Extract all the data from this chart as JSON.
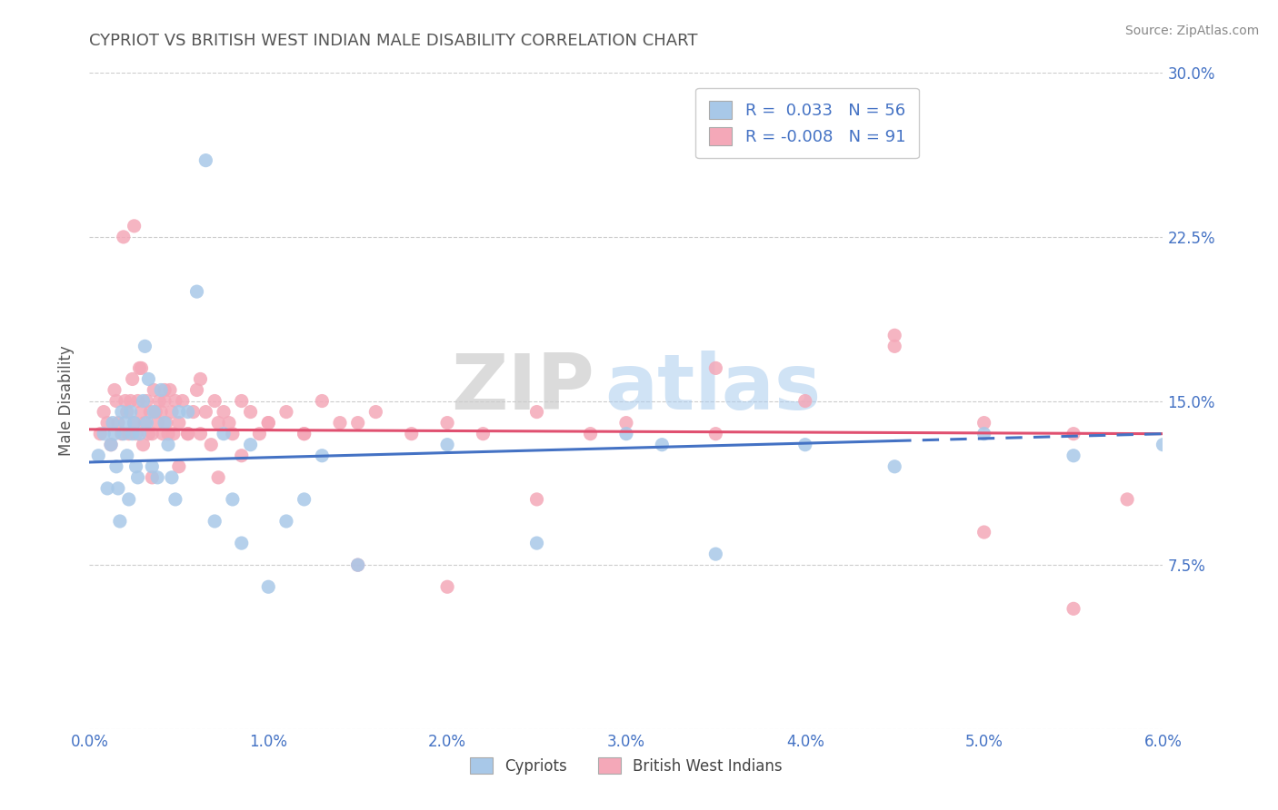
{
  "title": "CYPRIOT VS BRITISH WEST INDIAN MALE DISABILITY CORRELATION CHART",
  "source": "Source: ZipAtlas.com",
  "ylabel": "Male Disability",
  "xlim": [
    0.0,
    6.0
  ],
  "ylim": [
    0.0,
    30.0
  ],
  "xticks": [
    0.0,
    1.0,
    2.0,
    3.0,
    4.0,
    5.0,
    6.0
  ],
  "yticks": [
    0.0,
    7.5,
    15.0,
    22.5,
    30.0
  ],
  "xtick_labels": [
    "0.0%",
    "1.0%",
    "2.0%",
    "3.0%",
    "4.0%",
    "5.0%",
    "6.0%"
  ],
  "ytick_labels_right": [
    "",
    "7.5%",
    "15.0%",
    "22.5%",
    "30.0%"
  ],
  "cypriot_R": 0.033,
  "cypriot_N": 56,
  "bwi_R": -0.008,
  "bwi_N": 91,
  "cypriot_color": "#a8c8e8",
  "bwi_color": "#f4a8b8",
  "cypriot_line_color": "#4472c4",
  "bwi_line_color": "#e05070",
  "text_color": "#4472c4",
  "title_color": "#555555",
  "grid_color": "#cccccc",
  "background_color": "#ffffff",
  "watermark_zip": "ZIP",
  "watermark_atlas": "atlas",
  "cypriot_x": [
    0.05,
    0.08,
    0.1,
    0.12,
    0.13,
    0.14,
    0.15,
    0.16,
    0.17,
    0.18,
    0.19,
    0.2,
    0.21,
    0.22,
    0.23,
    0.24,
    0.25,
    0.26,
    0.27,
    0.28,
    0.3,
    0.31,
    0.32,
    0.33,
    0.35,
    0.36,
    0.38,
    0.4,
    0.42,
    0.44,
    0.46,
    0.48,
    0.5,
    0.55,
    0.6,
    0.65,
    0.7,
    0.75,
    0.8,
    0.85,
    0.9,
    1.0,
    1.1,
    1.2,
    1.3,
    1.5,
    2.0,
    2.5,
    3.0,
    3.5,
    4.0,
    4.5,
    5.0,
    5.5,
    6.0,
    3.2
  ],
  "cypriot_y": [
    12.5,
    13.5,
    11.0,
    13.0,
    14.0,
    13.5,
    12.0,
    11.0,
    9.5,
    14.5,
    13.5,
    14.0,
    12.5,
    10.5,
    14.5,
    13.5,
    14.0,
    12.0,
    11.5,
    13.5,
    15.0,
    17.5,
    14.0,
    16.0,
    12.0,
    14.5,
    11.5,
    15.5,
    14.0,
    13.0,
    11.5,
    10.5,
    14.5,
    14.5,
    20.0,
    26.0,
    9.5,
    13.5,
    10.5,
    8.5,
    13.0,
    6.5,
    9.5,
    10.5,
    12.5,
    7.5,
    13.0,
    8.5,
    13.5,
    8.0,
    13.0,
    12.0,
    13.5,
    12.5,
    13.0,
    13.0
  ],
  "bwi_x": [
    0.06,
    0.08,
    0.1,
    0.12,
    0.14,
    0.15,
    0.16,
    0.18,
    0.2,
    0.21,
    0.22,
    0.23,
    0.24,
    0.25,
    0.26,
    0.27,
    0.28,
    0.29,
    0.3,
    0.31,
    0.32,
    0.33,
    0.34,
    0.35,
    0.36,
    0.37,
    0.38,
    0.39,
    0.4,
    0.41,
    0.42,
    0.43,
    0.44,
    0.45,
    0.46,
    0.47,
    0.48,
    0.5,
    0.52,
    0.55,
    0.58,
    0.6,
    0.62,
    0.65,
    0.68,
    0.7,
    0.72,
    0.75,
    0.78,
    0.8,
    0.85,
    0.9,
    0.95,
    1.0,
    1.1,
    1.2,
    1.3,
    1.4,
    1.5,
    1.6,
    1.8,
    2.0,
    2.2,
    2.5,
    2.8,
    3.0,
    3.5,
    4.0,
    4.5,
    5.0,
    5.5,
    5.8,
    0.19,
    0.29,
    0.35,
    0.42,
    0.5,
    0.62,
    0.72,
    0.85,
    1.0,
    1.2,
    1.5,
    2.0,
    2.5,
    3.5,
    4.5,
    5.0,
    5.5,
    0.25,
    0.55
  ],
  "bwi_y": [
    13.5,
    14.5,
    14.0,
    13.0,
    15.5,
    15.0,
    14.0,
    13.5,
    15.0,
    14.5,
    13.5,
    15.0,
    16.0,
    14.0,
    13.5,
    15.0,
    16.5,
    14.5,
    13.0,
    14.0,
    15.0,
    13.5,
    14.5,
    13.5,
    15.5,
    14.5,
    14.0,
    15.0,
    14.5,
    13.5,
    15.0,
    14.0,
    13.5,
    15.5,
    14.5,
    13.5,
    15.0,
    14.0,
    15.0,
    13.5,
    14.5,
    15.5,
    13.5,
    14.5,
    13.0,
    15.0,
    14.0,
    14.5,
    14.0,
    13.5,
    15.0,
    14.5,
    13.5,
    14.0,
    14.5,
    13.5,
    15.0,
    14.0,
    14.0,
    14.5,
    13.5,
    14.0,
    13.5,
    14.5,
    13.5,
    14.0,
    13.5,
    15.0,
    18.0,
    14.0,
    13.5,
    10.5,
    22.5,
    16.5,
    11.5,
    15.5,
    12.0,
    16.0,
    11.5,
    12.5,
    14.0,
    13.5,
    7.5,
    6.5,
    10.5,
    16.5,
    17.5,
    9.0,
    5.5,
    23.0,
    13.5
  ]
}
